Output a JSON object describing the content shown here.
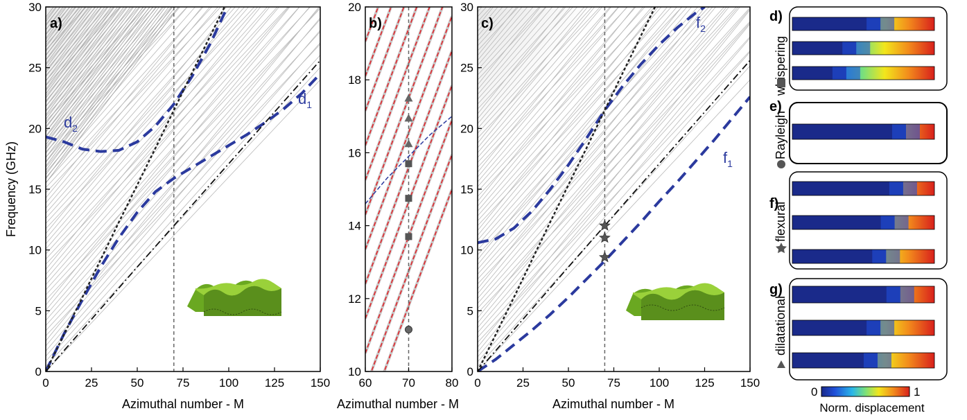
{
  "chart_data": [
    {
      "panel": "a)",
      "type": "line",
      "xlabel": "Azimuthal number - M",
      "ylabel": "Frequency (GHz)",
      "xlim": [
        0,
        150
      ],
      "ylim": [
        0,
        30
      ],
      "xticks": [
        "0",
        "25",
        "50",
        "75",
        "100",
        "125",
        "150"
      ],
      "yticks": [
        "0",
        "5",
        "10",
        "15",
        "20",
        "25",
        "30"
      ],
      "vline_x": 70,
      "series": [
        {
          "name": "d1",
          "style": "blue-dashed",
          "x": [
            0,
            10,
            20,
            30,
            40,
            50,
            60,
            70,
            80,
            90,
            100,
            110,
            120,
            130,
            140,
            150
          ],
          "y": [
            0,
            3.1,
            5.9,
            8.6,
            11.0,
            13.1,
            14.8,
            15.9,
            16.8,
            17.7,
            18.6,
            19.5,
            20.5,
            21.6,
            22.9,
            24.5
          ]
        },
        {
          "name": "d2",
          "style": "blue-dashed",
          "x": [
            0,
            10,
            20,
            30,
            40,
            50,
            60,
            70,
            80,
            90,
            98
          ],
          "y": [
            19.3,
            18.9,
            18.3,
            18.1,
            18.2,
            18.9,
            20.2,
            22.0,
            24.3,
            27.0,
            29.6
          ]
        },
        {
          "style": "black-dotted",
          "x": [
            0,
            20,
            40,
            60,
            80,
            100
          ],
          "y": [
            0,
            6.1,
            12.3,
            18.4,
            24.6,
            30.7
          ]
        },
        {
          "style": "black-dashdot",
          "x": [
            0,
            50,
            100,
            150
          ],
          "y": [
            0,
            8.6,
            17.1,
            25.6
          ]
        }
      ]
    },
    {
      "panel": "b)",
      "type": "line",
      "xlabel": "Azimuthal number - M",
      "xlim": [
        60,
        80
      ],
      "ylim": [
        10,
        20
      ],
      "xticks": [
        "60",
        "70",
        "80"
      ],
      "yticks": [
        "10",
        "12",
        "14",
        "16",
        "18",
        "20"
      ],
      "vline_x": 70,
      "series": [
        {
          "style": "blue-dashed",
          "x": [
            60,
            65,
            70,
            75,
            80
          ],
          "y": [
            14.6,
            15.3,
            15.9,
            16.5,
            17.0
          ]
        }
      ],
      "markers": [
        {
          "shape": "circle",
          "x": 70,
          "y": 11.15
        },
        {
          "shape": "square",
          "x": 70,
          "y": 13.7
        },
        {
          "shape": "square",
          "x": 70,
          "y": 14.75
        },
        {
          "shape": "square",
          "x": 70,
          "y": 15.7
        },
        {
          "shape": "triangle",
          "x": 70,
          "y": 16.25
        },
        {
          "shape": "triangle",
          "x": 70,
          "y": 16.95
        },
        {
          "shape": "triangle",
          "x": 70,
          "y": 17.5
        }
      ]
    },
    {
      "panel": "c)",
      "type": "line",
      "xlabel": "Azimuthal number - M",
      "xlim": [
        0,
        150
      ],
      "ylim": [
        0,
        30
      ],
      "xticks": [
        "0",
        "25",
        "50",
        "75",
        "100",
        "125",
        "150"
      ],
      "yticks": [
        "0",
        "5",
        "10",
        "15",
        "20",
        "25",
        "30"
      ],
      "vline_x": 70,
      "series": [
        {
          "name": "f1",
          "style": "blue-dashed",
          "x": [
            0,
            10,
            20,
            30,
            40,
            50,
            60,
            70,
            80,
            90,
            100,
            110,
            120,
            130,
            140,
            150
          ],
          "y": [
            0,
            1.0,
            2.2,
            3.4,
            4.7,
            6.1,
            7.6,
            9.1,
            10.7,
            12.3,
            14.0,
            15.6,
            17.3,
            19.0,
            20.8,
            22.6
          ]
        },
        {
          "name": "f2",
          "style": "blue-dashed",
          "x": [
            0,
            10,
            20,
            30,
            40,
            50,
            60,
            70,
            80,
            90,
            100,
            110,
            120,
            125
          ],
          "y": [
            10.6,
            10.9,
            11.8,
            13.2,
            15.0,
            17.0,
            19.2,
            21.5,
            23.5,
            25.3,
            26.9,
            28.3,
            29.5,
            30.0
          ]
        },
        {
          "style": "black-dotted",
          "x": [
            0,
            20,
            40,
            60,
            80,
            100
          ],
          "y": [
            0,
            6.1,
            12.3,
            18.4,
            24.6,
            30.7
          ]
        },
        {
          "style": "black-dashdot",
          "x": [
            0,
            50,
            100,
            150
          ],
          "y": [
            0,
            8.6,
            17.1,
            25.6
          ]
        }
      ],
      "markers": [
        {
          "shape": "star",
          "x": 70,
          "y": 9.4
        },
        {
          "shape": "star",
          "x": 70,
          "y": 11.0
        },
        {
          "shape": "star",
          "x": 70,
          "y": 12.0
        }
      ]
    }
  ],
  "curve_labels": {
    "d1": "d",
    "d1_sub": "1",
    "d2": "d",
    "d2_sub": "2",
    "f1": "f",
    "f1_sub": "1",
    "f2": "f",
    "f2_sub": "2"
  },
  "right_panels": [
    {
      "label": "d)",
      "name": "whispering",
      "symbol": "square"
    },
    {
      "label": "e)",
      "name": "Rayleigh",
      "symbol": "circle"
    },
    {
      "label": "f)",
      "name": "flexural",
      "symbol": "star"
    },
    {
      "label": "g)",
      "name": "dilatational",
      "symbol": "triangle"
    }
  ],
  "colorbar": {
    "min": "0",
    "max": "1",
    "label": "Norm. displacement"
  },
  "colors": {
    "curve_blue": "#2b3a9e",
    "red_lines": "#e0242a",
    "grey_lines": "#b8b8b8"
  }
}
